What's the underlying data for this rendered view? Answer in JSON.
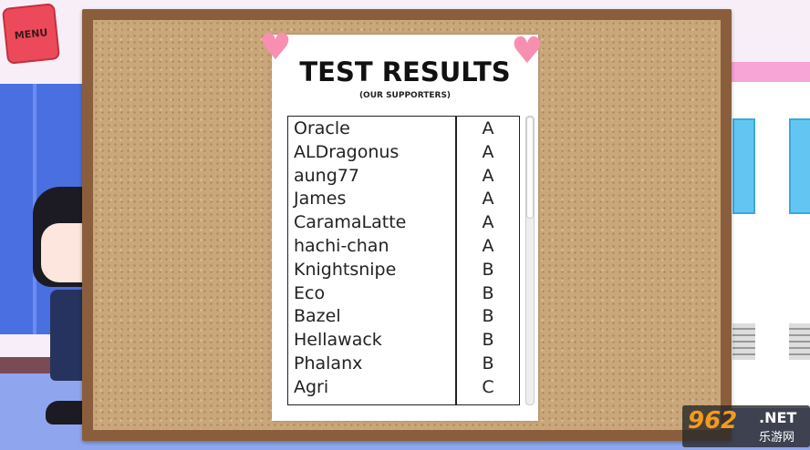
{
  "menu": {
    "label": "MENU"
  },
  "notice": {
    "title": "TEST RESULTS",
    "subtitle": "(OUR SUPPORTERS)",
    "rows": [
      {
        "name": "Oracle",
        "grade": "A"
      },
      {
        "name": "ALDragonus",
        "grade": "A"
      },
      {
        "name": "aung77",
        "grade": "A"
      },
      {
        "name": "James",
        "grade": "A"
      },
      {
        "name": "CaramaLatte",
        "grade": "A"
      },
      {
        "name": "hachi-chan",
        "grade": "A"
      },
      {
        "name": "Knightsnipe",
        "grade": "B"
      },
      {
        "name": "Eco",
        "grade": "B"
      },
      {
        "name": "Bazel",
        "grade": "B"
      },
      {
        "name": "Hellawack",
        "grade": "B"
      },
      {
        "name": "Phalanx",
        "grade": "B"
      },
      {
        "name": "Agri",
        "grade": "C"
      }
    ],
    "scroll_position_percent": 0
  },
  "watermark": {
    "brand": "962",
    "suffix": ".NET",
    "cn": "乐游网"
  },
  "colors": {
    "cork": "#c9a77a",
    "frame": "#8a5e3c",
    "heart": "#f98fb0",
    "lockers": "#4a6fe0",
    "menu": "#ec4a5a"
  }
}
